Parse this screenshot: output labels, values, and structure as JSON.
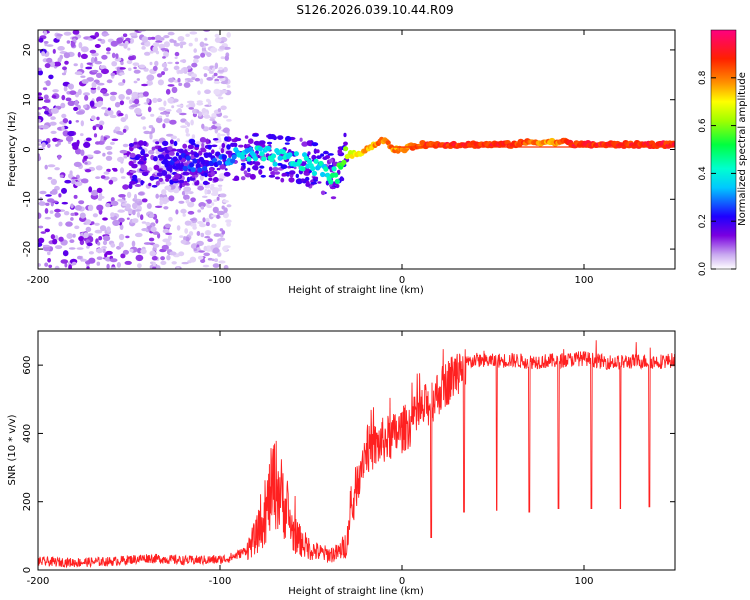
{
  "page_title": "S126.2026.039.10.44.R09",
  "chart_data": [
    {
      "type": "heatmap",
      "title": "S126.2026.039.10.44.R09",
      "xlabel": "Height of straight line (km)",
      "ylabel": "Frequency (Hz)",
      "xlim": [
        -200,
        150
      ],
      "ylim": [
        -24,
        24
      ],
      "x_ticks": [
        "-200",
        "-100",
        "0",
        "100"
      ],
      "x_tick_values": [
        -200,
        -100,
        0,
        100
      ],
      "y_ticks": [
        "-20",
        "-10",
        "0",
        "10",
        "20"
      ],
      "y_tick_values": [
        -20,
        -10,
        0,
        10,
        20
      ],
      "colorbar": {
        "label": "Normalized spectral amplitude",
        "range": [
          0,
          1
        ],
        "ticks": [
          "0.0",
          "0.2",
          "0.4",
          "0.6",
          "0.8"
        ],
        "tick_values": [
          0.0,
          0.2,
          0.4,
          0.6,
          0.8
        ]
      },
      "ridge": {
        "x": [
          -130,
          -110,
          -100,
          -90,
          -80,
          -70,
          -60,
          -50,
          -45,
          -40,
          -36,
          -33,
          -30,
          -25,
          -20,
          -15,
          -10,
          -5,
          0,
          10,
          20,
          30,
          40,
          50,
          60,
          70,
          80,
          85,
          90,
          95,
          100,
          110,
          120,
          130,
          140,
          150
        ],
        "y": [
          -3,
          -2.5,
          -2,
          -1.5,
          -1,
          -1.5,
          -2,
          -3,
          -4,
          -5,
          -5.5,
          -2,
          -1,
          -1,
          0,
          1,
          2,
          0,
          0,
          1,
          1,
          1,
          1,
          1,
          1,
          1.5,
          1.5,
          1.5,
          1.5,
          1,
          1,
          1,
          1,
          1,
          1,
          1
        ],
        "amplitude": [
          0.25,
          0.3,
          0.3,
          0.4,
          0.45,
          0.45,
          0.45,
          0.45,
          0.45,
          0.45,
          0.55,
          0.6,
          0.7,
          0.75,
          0.8,
          0.85,
          0.85,
          0.85,
          0.85,
          0.9,
          0.95,
          0.95,
          0.95,
          0.95,
          0.95,
          0.9,
          0.85,
          0.85,
          0.9,
          0.95,
          0.95,
          0.95,
          0.95,
          0.95,
          0.95,
          0.95
        ]
      },
      "noise_region_x": [
        -200,
        -95
      ]
    },
    {
      "type": "line",
      "xlabel": "Height of straight line (km)",
      "ylabel": "SNR (10 * v/v)",
      "xlim": [
        -200,
        150
      ],
      "ylim": [
        0,
        700
      ],
      "x_ticks": [
        "-200",
        "-100",
        "0",
        "100"
      ],
      "x_tick_values": [
        -200,
        -100,
        0,
        100
      ],
      "y_ticks": [
        "0",
        "200",
        "400",
        "600"
      ],
      "y_tick_values": [
        0,
        200,
        400,
        600
      ],
      "color": "#ff2020",
      "series": [
        {
          "name": "SNR",
          "x": [
            -200,
            -180,
            -160,
            -140,
            -120,
            -100,
            -95,
            -90,
            -85,
            -80,
            -75,
            -72,
            -70,
            -68,
            -65,
            -62,
            -60,
            -55,
            -50,
            -45,
            -40,
            -35,
            -30,
            -28,
            -25,
            -22,
            -20,
            -15,
            -10,
            -5,
            0,
            5,
            10,
            15,
            20,
            25,
            30,
            35,
            40,
            50,
            60,
            70,
            80,
            90,
            100,
            110,
            120,
            130,
            140,
            150
          ],
          "y": [
            25,
            22,
            25,
            35,
            28,
            30,
            35,
            45,
            60,
            100,
            160,
            230,
            260,
            240,
            200,
            150,
            110,
            80,
            60,
            50,
            45,
            50,
            80,
            150,
            250,
            320,
            350,
            360,
            380,
            390,
            410,
            430,
            460,
            490,
            520,
            550,
            580,
            605,
            615,
            612,
            615,
            610,
            612,
            615,
            620,
            610,
            608,
            612,
            610,
            615
          ]
        }
      ],
      "dips": [
        {
          "x": 16,
          "y": 95
        },
        {
          "x": 34,
          "y": 170
        },
        {
          "x": 52,
          "y": 175
        },
        {
          "x": 70,
          "y": 170
        },
        {
          "x": 86,
          "y": 180
        },
        {
          "x": 104,
          "y": 180
        },
        {
          "x": 120,
          "y": 180
        },
        {
          "x": 136,
          "y": 185
        }
      ]
    }
  ]
}
